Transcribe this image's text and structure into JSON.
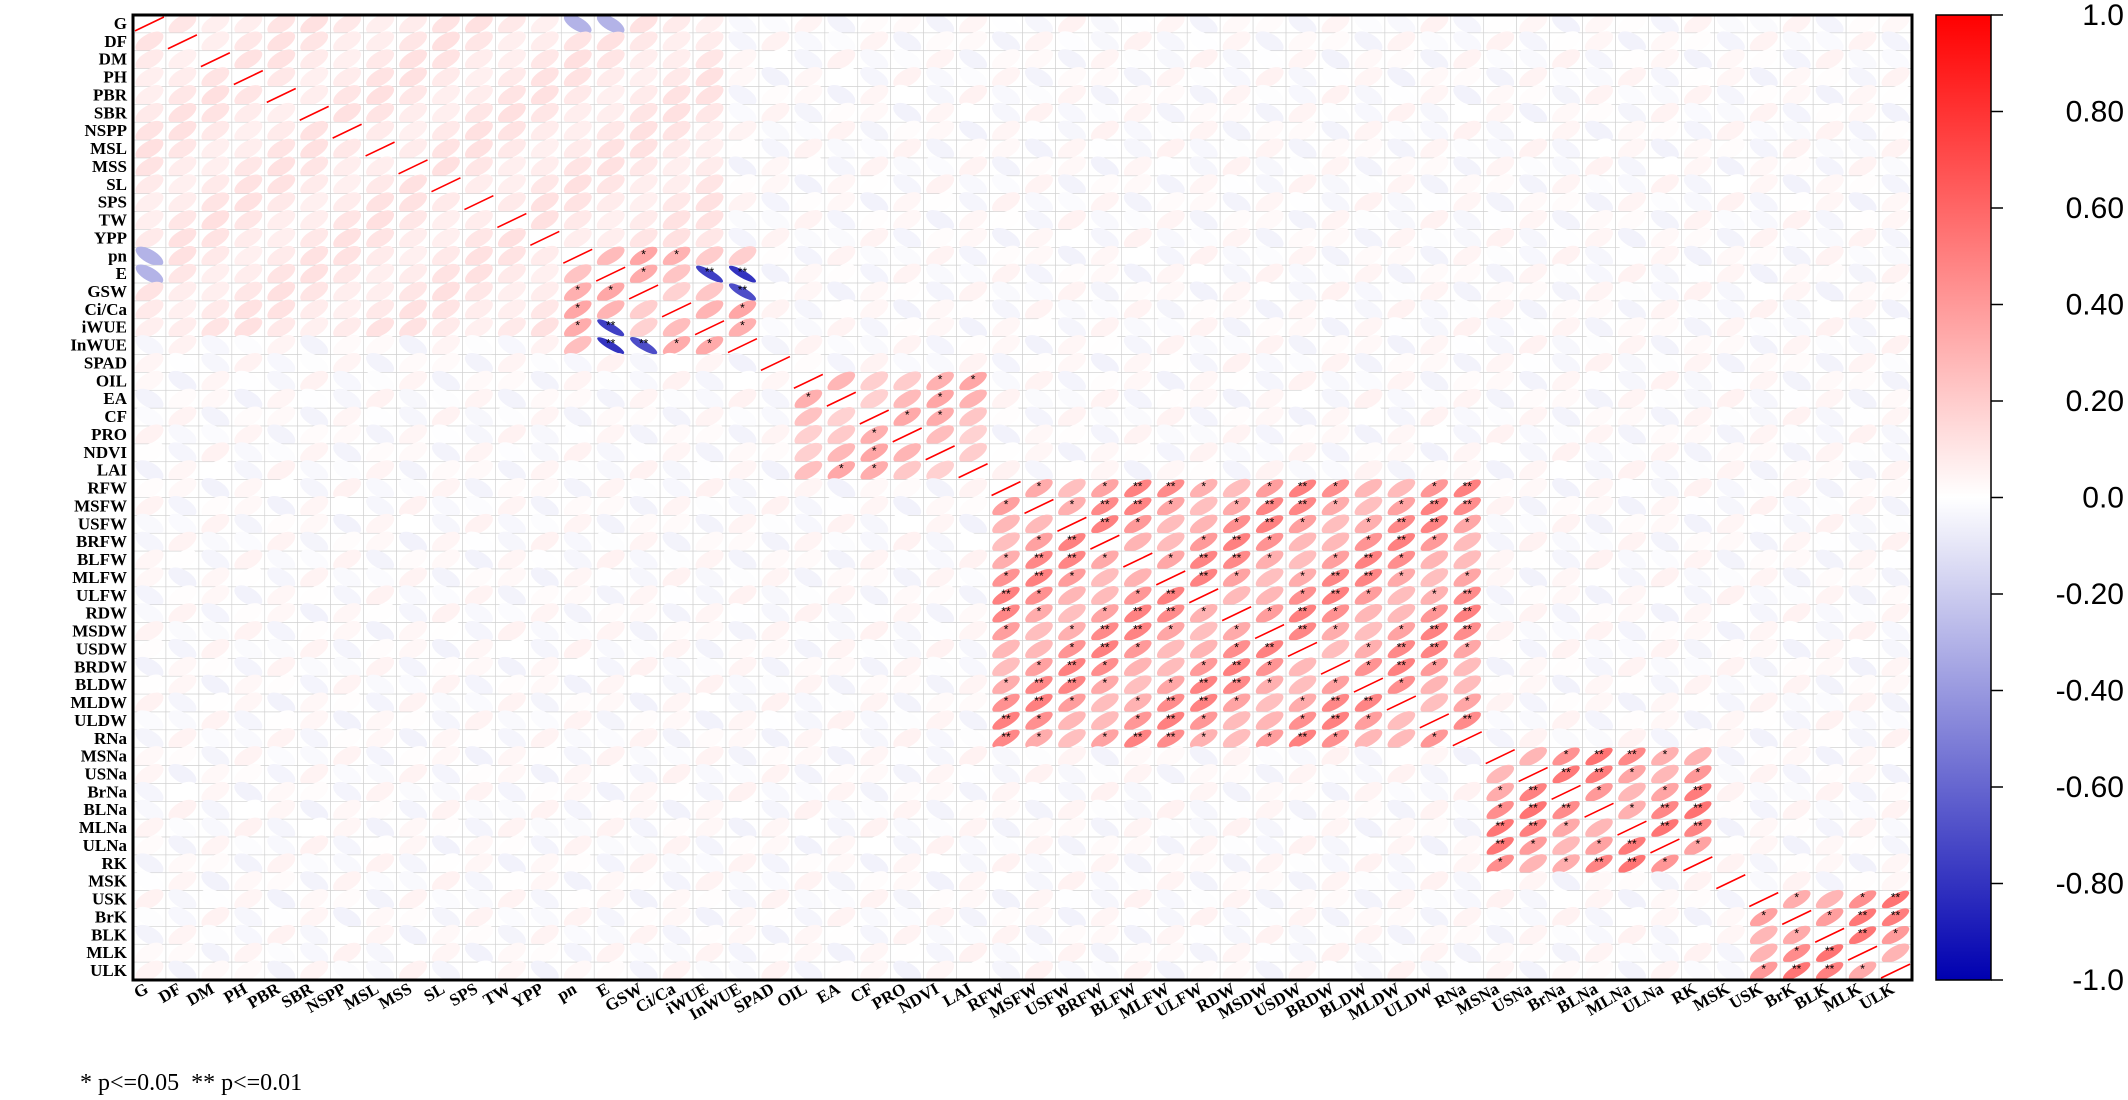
{
  "chart_data": {
    "type": "heatmap",
    "variables": [
      "G",
      "DF",
      "DM",
      "PH",
      "PBR",
      "SBR",
      "NSPP",
      "MSL",
      "MSS",
      "SL",
      "SPS",
      "TW",
      "YPP",
      "pn",
      "E",
      "GSW",
      "Ci/Ca",
      "iWUE",
      "InWUE",
      "SPAD",
      "OIL",
      "EA",
      "CF",
      "PRO",
      "NDVI",
      "LAI",
      "RFW",
      "MSFW",
      "USFW",
      "BRFW",
      "BLFW",
      "MLFW",
      "ULFW",
      "RDW",
      "MSDW",
      "USDW",
      "BRDW",
      "BLDW",
      "MLDW",
      "ULDW",
      "RNa",
      "MSNa",
      "USNa",
      "BrNa",
      "BLNa",
      "MLNa",
      "ULNa",
      "RK",
      "MSK",
      "USK",
      "BrK",
      "BLK",
      "MLK",
      "ULK"
    ],
    "colorbar": {
      "ticks": [
        "1.0",
        "0.80",
        "0.60",
        "0.40",
        "0.20",
        "0.0",
        "-0.20",
        "-0.40",
        "-0.60",
        "-0.80",
        "-1.0"
      ],
      "min": -1.0,
      "max": 1.0,
      "colors": {
        "positive": "#ff0000",
        "neutral": "#ffffff",
        "negative": "#0000b0"
      }
    },
    "significance_legend": "* p<=0.05  ** p<=0.01",
    "blocks": [
      {
        "r": [
          0,
          17
        ],
        "c": [
          0,
          17
        ],
        "v": 0.12
      },
      {
        "r": [
          13,
          18
        ],
        "c": [
          13,
          18
        ],
        "v": 0.35
      },
      {
        "r": [
          20,
          25
        ],
        "c": [
          20,
          25
        ],
        "v": 0.35
      },
      {
        "r": [
          26,
          40
        ],
        "c": [
          26,
          40
        ],
        "v": 0.5
      },
      {
        "r": [
          41,
          47
        ],
        "c": [
          41,
          47
        ],
        "v": 0.55
      },
      {
        "r": [
          49,
          53
        ],
        "c": [
          49,
          53
        ],
        "v": 0.55
      }
    ],
    "overrides": [
      {
        "r": 14,
        "c": 18,
        "v": -0.8
      },
      {
        "r": 18,
        "c": 14,
        "v": -0.8
      },
      {
        "r": 15,
        "c": 18,
        "v": -0.7
      },
      {
        "r": 18,
        "c": 15,
        "v": -0.7
      },
      {
        "r": 17,
        "c": 14,
        "v": -0.75
      },
      {
        "r": 14,
        "c": 17,
        "v": -0.75
      },
      {
        "r": 0,
        "c": 14,
        "v": -0.3
      },
      {
        "r": 0,
        "c": 13,
        "v": -0.3
      },
      {
        "r": 13,
        "c": 0,
        "v": -0.3
      },
      {
        "r": 14,
        "c": 0,
        "v": -0.3
      }
    ]
  }
}
